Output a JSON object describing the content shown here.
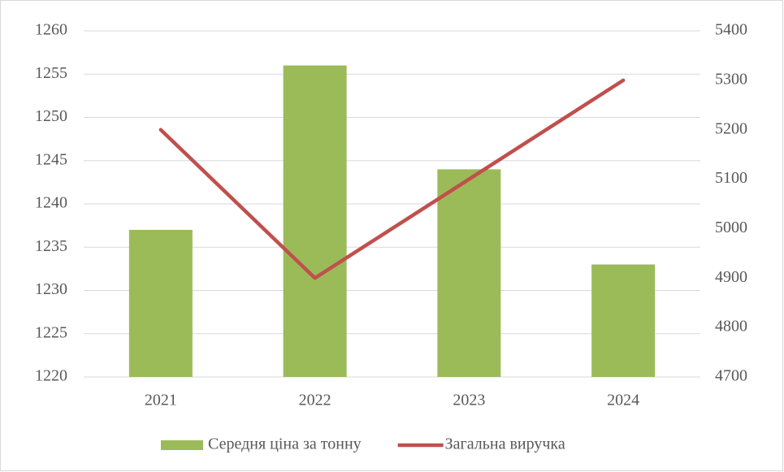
{
  "chart_data": {
    "type": "bar",
    "categories": [
      "2021",
      "2022",
      "2023",
      "2024"
    ],
    "series": [
      {
        "name": "Середня ціна за тонну",
        "type": "bar",
        "color": "#9bbb59",
        "values": [
          1237,
          1256,
          1244,
          1233
        ]
      },
      {
        "name": "Загальна виручка",
        "type": "line",
        "axis": "y2",
        "color": "#c0504d",
        "values": [
          5200,
          4900,
          5100,
          5300
        ]
      }
    ],
    "ylim": [
      1220,
      1260
    ],
    "yticks": [
      1220,
      1225,
      1230,
      1235,
      1240,
      1245,
      1250,
      1255,
      1260
    ],
    "y2lim": [
      4700,
      5400
    ],
    "y2ticks": [
      4700,
      4800,
      4900,
      5000,
      5100,
      5200,
      5300,
      5400
    ],
    "grid": true,
    "legend": "bottom"
  }
}
